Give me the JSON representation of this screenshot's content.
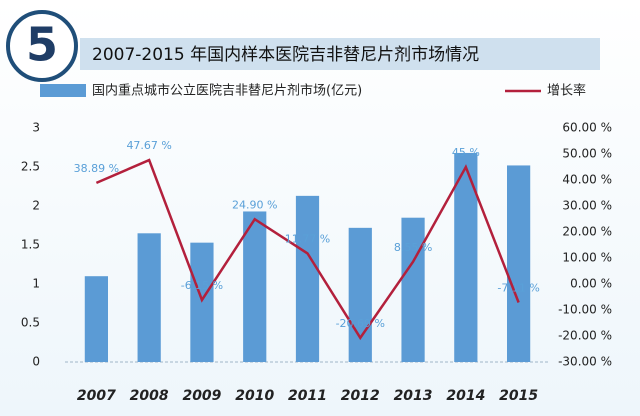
{
  "chart_data": {
    "type": "bar",
    "badge": "5",
    "title": "2007-2015 年国内样本医院吉非替尼片剂市场情况",
    "categories": [
      "2007",
      "2008",
      "2009",
      "2010",
      "2011",
      "2012",
      "2013",
      "2014",
      "2015"
    ],
    "series": [
      {
        "name": "国内重点城市公立医院吉非替尼片剂市场(亿元)",
        "type": "bar",
        "color": "#5b9bd5",
        "values": [
          1.1,
          1.65,
          1.53,
          1.93,
          2.13,
          1.72,
          1.85,
          2.68,
          2.52
        ]
      },
      {
        "name": "增长率",
        "type": "line",
        "axis": "y2",
        "color": "#b3203c",
        "values": [
          38.89,
          47.67,
          -6.15,
          24.9,
          11.77,
          -20.69,
          8.55,
          45,
          -7.11
        ],
        "value_labels": [
          "38.89 %",
          "47.67 %",
          "-6.15 %",
          "24.90 %",
          "11.77 %",
          "-20.69 %",
          "8.55 %",
          "45 %",
          "-7.11 %"
        ]
      }
    ],
    "ylim": [
      0,
      3
    ],
    "yticks": [
      0,
      0.5,
      1,
      1.5,
      2,
      2.5,
      3
    ],
    "y2lim": [
      -30,
      60
    ],
    "y2ticks": [
      {
        "value": 60,
        "label": "60.00 %"
      },
      {
        "value": 50,
        "label": "50.00 %"
      },
      {
        "value": 40,
        "label": "40.00 %"
      },
      {
        "value": 30,
        "label": "30.00 %"
      },
      {
        "value": 20,
        "label": "20.00 %"
      },
      {
        "value": 10,
        "label": "10.00 %"
      },
      {
        "value": 0,
        "label": "0.00 %"
      },
      {
        "value": -10,
        "label": "-10.00 %"
      },
      {
        "value": -20,
        "label": "-20.00 %"
      },
      {
        "value": -30,
        "label": "-30.00 %"
      }
    ],
    "grid": false
  }
}
